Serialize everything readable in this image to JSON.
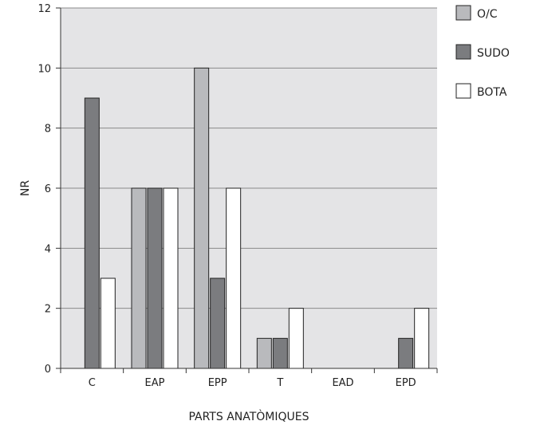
{
  "chart_data": {
    "type": "bar",
    "categories": [
      "C",
      "EAP",
      "EPP",
      "T",
      "EAD",
      "EPD"
    ],
    "series": [
      {
        "name": "O/C",
        "values": [
          0,
          6,
          10,
          1,
          0,
          0
        ]
      },
      {
        "name": "SUDO",
        "values": [
          9,
          6,
          3,
          1,
          0,
          1
        ]
      },
      {
        "name": "BOTA",
        "values": [
          3,
          6,
          6,
          2,
          0,
          2
        ]
      }
    ],
    "xlabel": "PARTS ANATÒMIQUES",
    "ylabel": "NR",
    "ylim": [
      0,
      12
    ],
    "yticks": [
      0,
      2,
      4,
      6,
      8,
      10,
      12
    ],
    "grid": true,
    "legend_position": "right",
    "colors": {
      "plot_background": "#e4e4e6",
      "grid": "#8a8a8a",
      "axis": "#333333",
      "series": [
        "#b9babd",
        "#7b7c7f",
        "#ffffff"
      ],
      "bar_stroke": "#222222"
    }
  }
}
